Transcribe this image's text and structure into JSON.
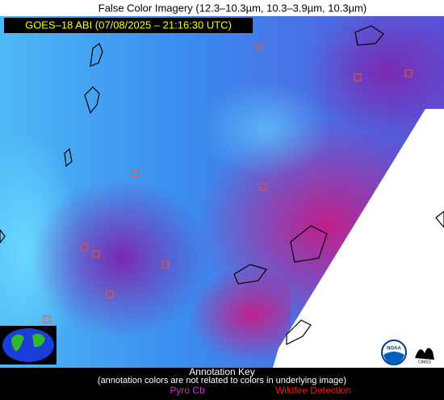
{
  "header": {
    "title": "False Color Imagery (12.3–10.3µm, 10.3–3.9µm, 10.3µm)",
    "subtitle": "GOES–18 ABI (07/08/2025 – 21:16:30 UTC)"
  },
  "annotation_key": {
    "title": "Annotation Key",
    "note": "(annotation colors are not related to colors in underlying image)",
    "items": [
      {
        "label": "Pyro Cb",
        "color": "#d030d0"
      },
      {
        "label": "Wildfire Detection",
        "color": "#ff1010"
      }
    ]
  },
  "logos": {
    "noaa": "NOAA",
    "cimss": "CIMSS"
  }
}
